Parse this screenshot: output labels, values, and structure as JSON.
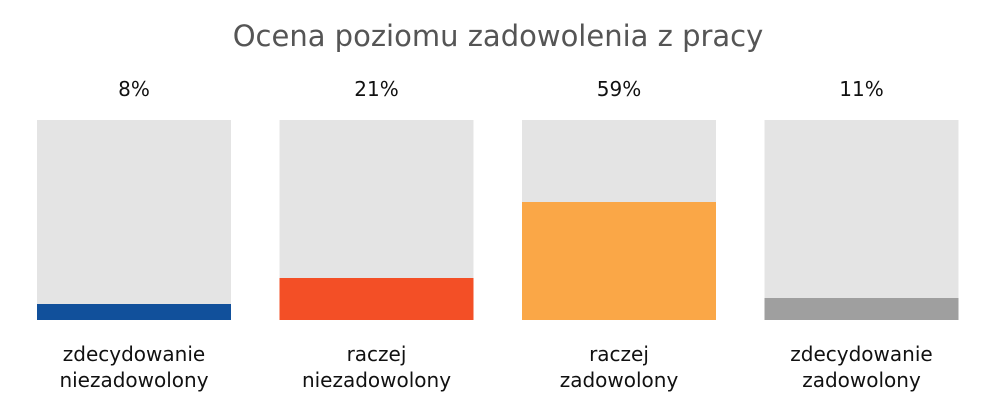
{
  "chart_data": {
    "type": "bar",
    "title": "Ocena poziomu zadowolenia z pracy",
    "categories": [
      [
        "zdecydowanie",
        "niezadowolony"
      ],
      [
        "raczej",
        "niezadowolony"
      ],
      [
        "raczej",
        "zadowolony"
      ],
      [
        "zdecydowanie",
        "zadowolony"
      ]
    ],
    "values": [
      8,
      21,
      59,
      11
    ],
    "value_labels": [
      "8%",
      "21%",
      "59%",
      "11%"
    ],
    "ylim": [
      0,
      100
    ],
    "unit": "%",
    "grid": false,
    "legend": "none",
    "colors": [
      "#11509b",
      "#f34f26",
      "#faa747",
      "#9f9f9f"
    ],
    "track_color": "#e4e4e4"
  }
}
